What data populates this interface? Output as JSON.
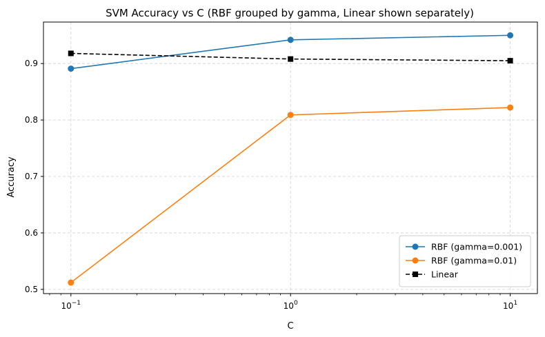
{
  "chart_data": {
    "type": "line",
    "title": "SVM Accuracy vs C (RBF grouped by gamma, Linear shown separately)",
    "xlabel": "C",
    "ylabel": "Accuracy",
    "x_scale": "log",
    "x": [
      0.1,
      1,
      10
    ],
    "x_ticks": [
      {
        "value": 0.1,
        "base": "10",
        "exp": "−1"
      },
      {
        "value": 1,
        "base": "10",
        "exp": "0"
      },
      {
        "value": 10,
        "base": "10",
        "exp": "1"
      }
    ],
    "xlim": [
      0.075,
      13.3
    ],
    "ylim": [
      0.4925,
      0.9735
    ],
    "y_ticks": [
      {
        "value": 0.5,
        "label": "0.5"
      },
      {
        "value": 0.6,
        "label": "0.6"
      },
      {
        "value": 0.7,
        "label": "0.7"
      },
      {
        "value": 0.8,
        "label": "0.8"
      },
      {
        "value": 0.9,
        "label": "0.9"
      }
    ],
    "grid": true,
    "legend_position": "lower-right",
    "series": [
      {
        "name": "RBF (gamma=0.001)",
        "values": [
          0.891,
          0.942,
          0.95
        ],
        "color": "#1f77b4",
        "marker": "circle",
        "linestyle": "solid"
      },
      {
        "name": "RBF (gamma=0.01)",
        "values": [
          0.512,
          0.809,
          0.822
        ],
        "color": "#ff7f0e",
        "marker": "circle",
        "linestyle": "solid"
      },
      {
        "name": "Linear",
        "values": [
          0.918,
          0.908,
          0.905
        ],
        "color": "#000000",
        "marker": "square",
        "linestyle": "dashed"
      }
    ]
  }
}
